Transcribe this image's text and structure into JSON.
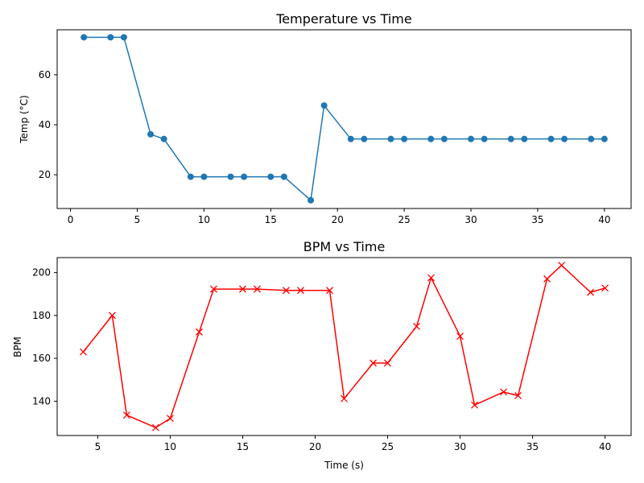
{
  "chart_data": [
    {
      "type": "line",
      "title": "Temperature vs Time",
      "xlabel": "",
      "ylabel": "Temp (°C)",
      "xlim": [
        -1,
        42
      ],
      "ylim": [
        6.5,
        78
      ],
      "xticks": [
        0,
        5,
        10,
        15,
        20,
        25,
        30,
        35,
        40
      ],
      "yticks": [
        20,
        40,
        60
      ],
      "grid": false,
      "marker": "circle",
      "color": "#1f77b4",
      "x": [
        1,
        3,
        4,
        6,
        7,
        9,
        10,
        12,
        13,
        15,
        16,
        18,
        19,
        21,
        22,
        24,
        25,
        27,
        28,
        30,
        31,
        33,
        34,
        36,
        37,
        39,
        40
      ],
      "y": [
        75,
        75,
        75,
        36.2,
        34.3,
        19.2,
        19.2,
        19.2,
        19.2,
        19.2,
        19.2,
        9.8,
        47.7,
        34.3,
        34.3,
        34.3,
        34.3,
        34.3,
        34.3,
        34.3,
        34.3,
        34.3,
        34.3,
        34.3,
        34.3,
        34.3,
        34.3
      ]
    },
    {
      "type": "line",
      "title": "BPM vs Time",
      "xlabel": "Time (s)",
      "ylabel": "BPM",
      "xlim": [
        2.2,
        41.8
      ],
      "ylim": [
        124,
        207
      ],
      "xticks": [
        5,
        10,
        15,
        20,
        25,
        30,
        35,
        40
      ],
      "yticks": [
        140,
        160,
        180,
        200
      ],
      "grid": false,
      "marker": "x",
      "color": "#ff0000",
      "x": [
        4,
        6,
        7,
        9,
        10,
        12,
        13,
        15,
        16,
        18,
        19,
        21,
        22,
        24,
        25,
        27,
        28,
        30,
        31,
        33,
        34,
        36,
        37,
        39,
        40
      ],
      "y": [
        163,
        180,
        133.5,
        127.7,
        132,
        172.3,
        192.3,
        192.3,
        192.3,
        191.7,
        191.7,
        191.7,
        141.2,
        157.8,
        157.8,
        174.9,
        197.6,
        170.3,
        138.2,
        144.3,
        142.6,
        197.1,
        203.4,
        190.8,
        192.8
      ]
    }
  ]
}
